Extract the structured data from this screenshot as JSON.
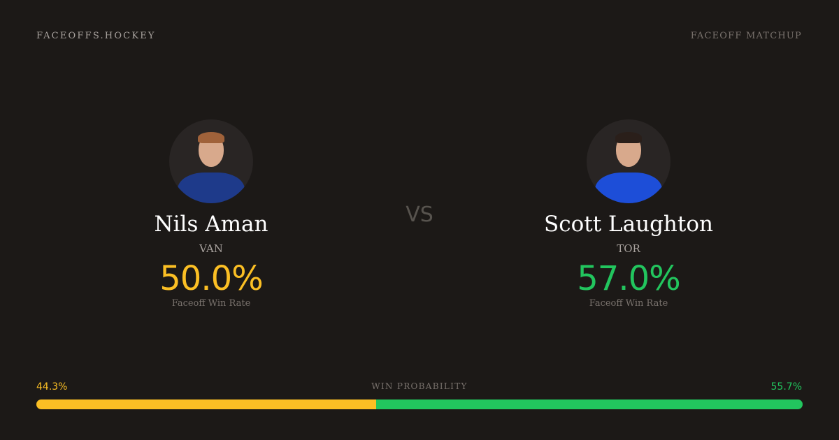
{
  "header": {
    "brand": "FACEOFFS.HOCKEY",
    "tag": "FACEOFF MATCHUP"
  },
  "vs": "VS",
  "players": [
    {
      "name": "Nils Aman",
      "team": "VAN",
      "rate": "50.0%",
      "rate_label": "Faceoff Win Rate",
      "color": "#fbbf24"
    },
    {
      "name": "Scott Laughton",
      "team": "TOR",
      "rate": "57.0%",
      "rate_label": "Faceoff Win Rate",
      "color": "#22c55e"
    }
  ],
  "win_probability": {
    "title": "WIN PROBABILITY",
    "left": "44.3%",
    "right": "55.7%",
    "left_value": 44.3,
    "right_value": 55.7
  }
}
